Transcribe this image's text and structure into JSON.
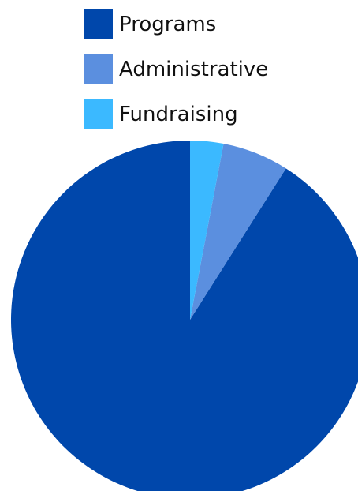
{
  "chart_data": {
    "type": "pie",
    "title": "",
    "legend_position": "top-center",
    "start_angle": "12 o'clock",
    "direction": "counterclockwise",
    "slices": [
      {
        "label": "Programs",
        "value": 91.0,
        "color": "#0047ab"
      },
      {
        "label": "Administrative",
        "value": 6.0,
        "color": "#5b8fdf"
      },
      {
        "label": "Fundraising",
        "value": 3.0,
        "color": "#3bb9ff"
      }
    ]
  }
}
